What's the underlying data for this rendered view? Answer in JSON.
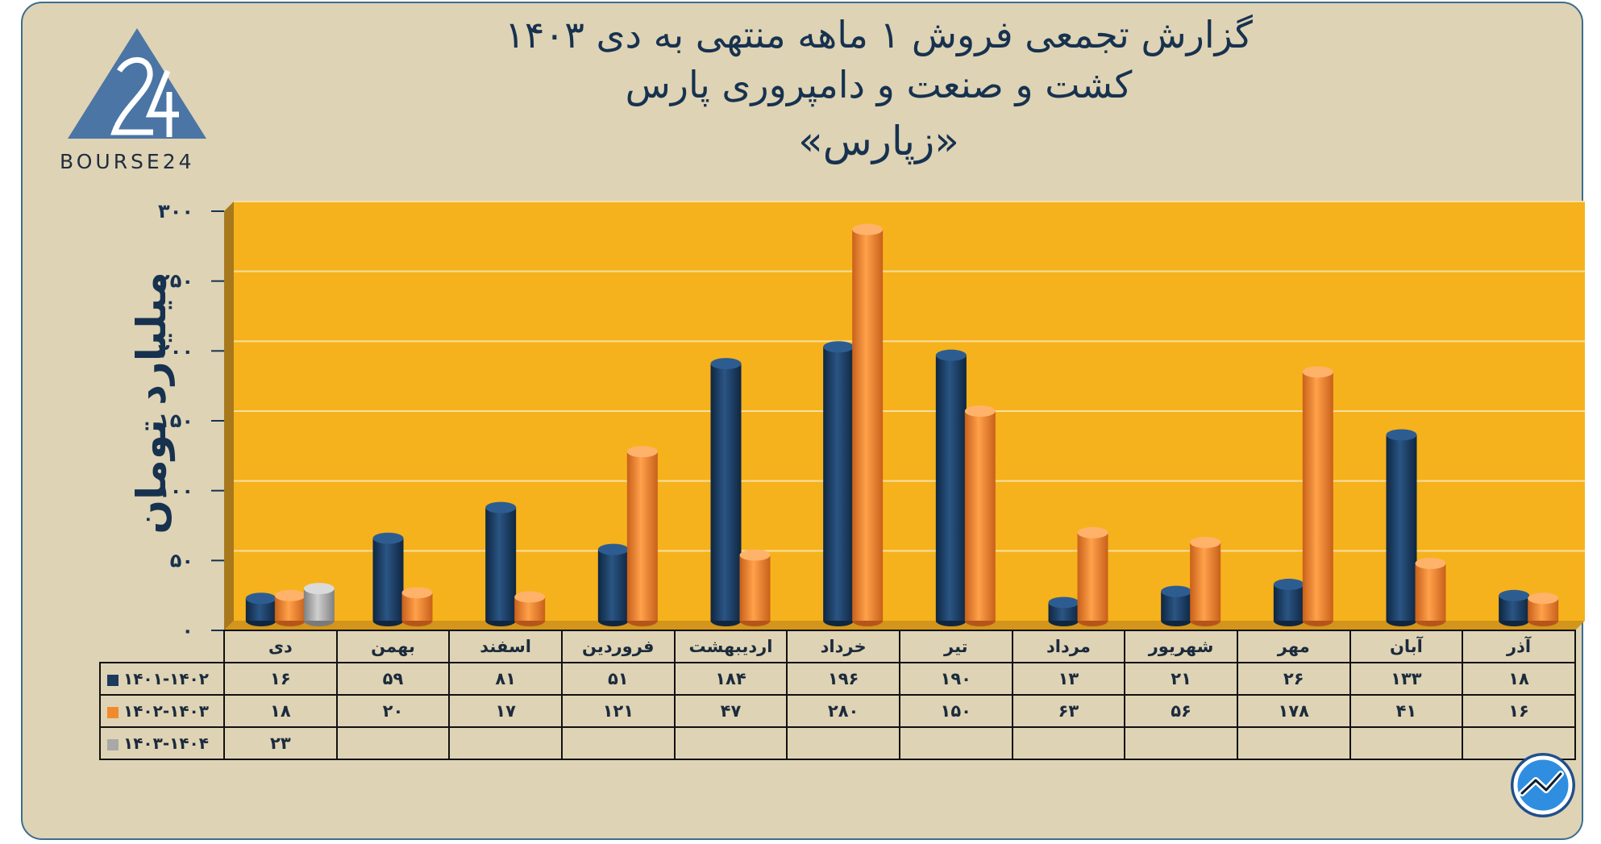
{
  "title": {
    "line1": "گزارش تجمعی فروش ۱ ماهه منتهی به دی ۱۴۰۳",
    "line2": "کشت و صنعت و دامپروری پارس",
    "line3": "«زپارس»"
  },
  "logo": {
    "text": "BOURSE24",
    "number": "24"
  },
  "colors": {
    "background": "#ded3b5",
    "plot": "#f6b21c",
    "series1": "#1b3a5e",
    "series2": "#f08a2c",
    "series3": "#a8a8a8",
    "text": "#17324f"
  },
  "chart_data": {
    "type": "bar",
    "ylabel": "میلیارد تومان",
    "ylim": [
      0,
      300
    ],
    "yticks": [
      "۰",
      "۵۰",
      "۱۰۰",
      "۱۵۰",
      "۲۰۰",
      "۲۵۰",
      "۳۰۰"
    ],
    "grid": true,
    "categories": [
      "دی",
      "بهمن",
      "اسفند",
      "فروردین",
      "اردیبهشت",
      "خرداد",
      "تیر",
      "مرداد",
      "شهریور",
      "مهر",
      "آبان",
      "آذر"
    ],
    "series": [
      {
        "name": "۱۴۰۱-۱۴۰۲",
        "values": [
          16,
          59,
          81,
          51,
          184,
          196,
          190,
          13,
          21,
          26,
          133,
          18
        ],
        "labels": [
          "۱۶",
          "۵۹",
          "۸۱",
          "۵۱",
          "۱۸۴",
          "۱۹۶",
          "۱۹۰",
          "۱۳",
          "۲۱",
          "۲۶",
          "۱۳۳",
          "۱۸"
        ]
      },
      {
        "name": "۱۴۰۲-۱۴۰۳",
        "values": [
          18,
          20,
          17,
          121,
          47,
          280,
          150,
          63,
          56,
          178,
          41,
          16
        ],
        "labels": [
          "۱۸",
          "۲۰",
          "۱۷",
          "۱۲۱",
          "۴۷",
          "۲۸۰",
          "۱۵۰",
          "۶۳",
          "۵۶",
          "۱۷۸",
          "۴۱",
          "۱۶"
        ]
      },
      {
        "name": "۱۴۰۳-۱۴۰۴",
        "values": [
          23,
          null,
          null,
          null,
          null,
          null,
          null,
          null,
          null,
          null,
          null,
          null
        ],
        "labels": [
          "۲۳",
          "",
          "",
          "",
          "",
          "",
          "",
          "",
          "",
          "",
          "",
          ""
        ]
      }
    ]
  }
}
